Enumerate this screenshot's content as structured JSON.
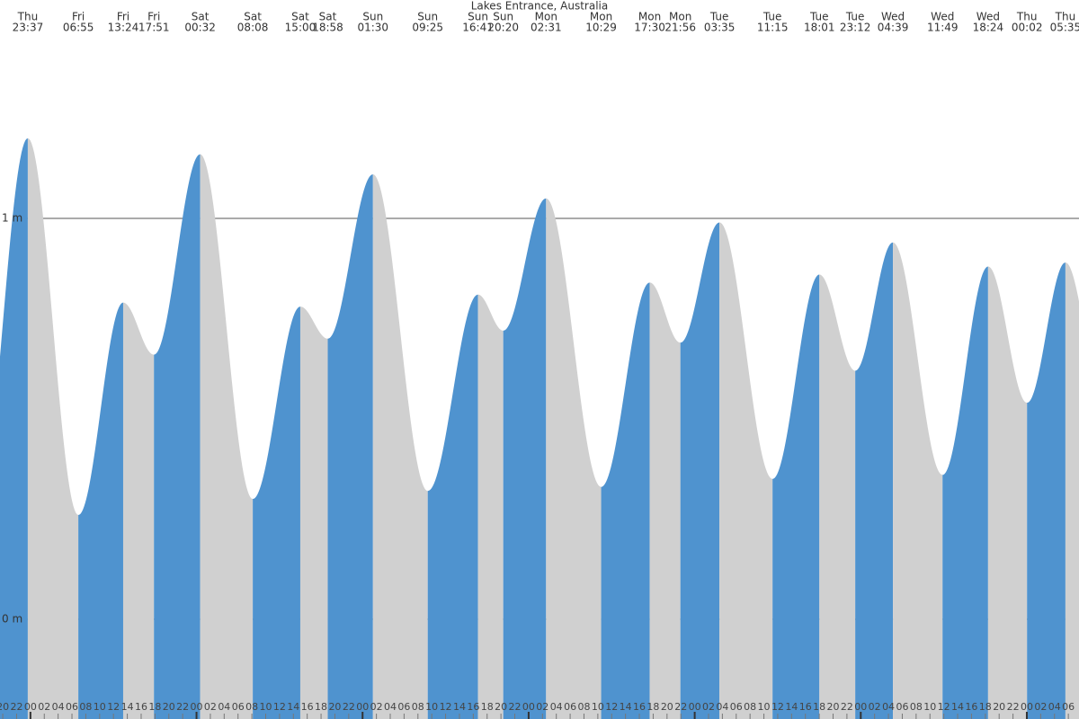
{
  "chart_data": {
    "type": "tide",
    "title": "Lakes Entrance, Australia",
    "x": [
      23.62,
      30.92,
      37.4,
      41.85,
      48.53,
      56.13,
      63.0,
      66.97,
      73.5,
      81.42,
      88.68,
      92.33,
      98.52,
      106.48,
      113.5,
      117.93,
      123.58,
      131.25,
      138.02,
      143.2,
      148.65,
      155.82,
      162.4,
      168.03,
      173.58
    ],
    "values": [
      1.2,
      0.26,
      0.79,
      0.66,
      1.16,
      0.3,
      0.78,
      0.7,
      1.11,
      0.32,
      0.81,
      0.72,
      1.05,
      0.33,
      0.84,
      0.69,
      0.99,
      0.35,
      0.86,
      0.62,
      0.94,
      0.36,
      0.88,
      0.54,
      0.89
    ],
    "day": [
      "Thu",
      "Fri",
      "Fri",
      "Fri",
      "Sat",
      "Sat",
      "Sat",
      "Sat",
      "Sun",
      "Sun",
      "Sun",
      "Sun",
      "Mon",
      "Mon",
      "Mon",
      "Mon",
      "Tue",
      "Tue",
      "Tue",
      "Tue",
      "Wed",
      "Wed",
      "Wed",
      "Thu",
      "Thu"
    ],
    "time": [
      "23:37",
      "06:55",
      "13:24",
      "17:51",
      "00:32",
      "08:08",
      "15:00",
      "18:58",
      "01:30",
      "09:25",
      "16:41",
      "20:20",
      "02:31",
      "10:29",
      "17:30",
      "21:56",
      "03:35",
      "11:15",
      "18:01",
      "23:12",
      "04:39",
      "11:49",
      "18:24",
      "00:02",
      "05:35"
    ],
    "rise_color": "#4f93cf",
    "fall_color": "#d0d0d0",
    "xlim": [
      19.6,
      175.54
    ],
    "ylim": [
      -0.249,
      1.545
    ],
    "yticks": [
      {
        "value": 0,
        "label": "0 m"
      },
      {
        "value": 1,
        "label": "1 m"
      }
    ],
    "grid": true,
    "xticks": [
      20,
      22,
      {
        "value": 24,
        "label": "00"
      },
      {
        "value": 26,
        "label": "02"
      },
      {
        "value": 28,
        "label": "04"
      },
      {
        "value": 30,
        "label": "06"
      },
      {
        "value": 32,
        "label": "08"
      },
      {
        "value": 34,
        "label": "10"
      },
      {
        "value": 36,
        "label": "12"
      },
      {
        "value": 38,
        "label": "14"
      },
      {
        "value": 40,
        "label": "16"
      },
      {
        "value": 42,
        "label": "18"
      },
      {
        "value": 44,
        "label": "20"
      },
      {
        "value": 46,
        "label": "22"
      },
      {
        "value": 48,
        "label": "00"
      },
      {
        "value": 50,
        "label": "02"
      },
      {
        "value": 52,
        "label": "04"
      },
      {
        "value": 54,
        "label": "06"
      },
      {
        "value": 56,
        "label": "08"
      },
      {
        "value": 58,
        "label": "10"
      },
      {
        "value": 60,
        "label": "12"
      },
      {
        "value": 62,
        "label": "14"
      },
      {
        "value": 64,
        "label": "16"
      },
      {
        "value": 66,
        "label": "18"
      },
      {
        "value": 68,
        "label": "20"
      },
      {
        "value": 70,
        "label": "22"
      },
      {
        "value": 72,
        "label": "00"
      },
      {
        "value": 74,
        "label": "02"
      },
      {
        "value": 76,
        "label": "04"
      },
      {
        "value": 78,
        "label": "06"
      },
      {
        "value": 80,
        "label": "08"
      },
      {
        "value": 82,
        "label": "10"
      },
      {
        "value": 84,
        "label": "12"
      },
      {
        "value": 86,
        "label": "14"
      },
      {
        "value": 88,
        "label": "16"
      },
      {
        "value": 90,
        "label": "18"
      },
      {
        "value": 92,
        "label": "20"
      },
      {
        "value": 94,
        "label": "22"
      },
      {
        "value": 96,
        "label": "00"
      },
      {
        "value": 98,
        "label": "02"
      },
      {
        "value": 100,
        "label": "04"
      },
      {
        "value": 102,
        "label": "06"
      },
      {
        "value": 104,
        "label": "08"
      },
      {
        "value": 106,
        "label": "10"
      },
      {
        "value": 108,
        "label": "12"
      },
      {
        "value": 110,
        "label": "14"
      },
      {
        "value": 112,
        "label": "16"
      },
      {
        "value": 114,
        "label": "18"
      },
      {
        "value": 116,
        "label": "20"
      },
      {
        "value": 118,
        "label": "22"
      },
      {
        "value": 120,
        "label": "00"
      },
      {
        "value": 122,
        "label": "02"
      },
      {
        "value": 124,
        "label": "04"
      },
      {
        "value": 126,
        "label": "06"
      },
      {
        "value": 128,
        "label": "08"
      },
      {
        "value": 130,
        "label": "10"
      },
      {
        "value": 132,
        "label": "12"
      },
      {
        "value": 134,
        "label": "14"
      },
      {
        "value": 136,
        "label": "16"
      },
      {
        "value": 138,
        "label": "18"
      },
      {
        "value": 140,
        "label": "20"
      },
      {
        "value": 142,
        "label": "22"
      },
      {
        "value": 144,
        "label": "00"
      },
      {
        "value": 146,
        "label": "02"
      },
      {
        "value": 148,
        "label": "04"
      },
      {
        "value": 150,
        "label": "06"
      },
      {
        "value": 152,
        "label": "08"
      },
      {
        "value": 154,
        "label": "10"
      },
      {
        "value": 156,
        "label": "12"
      },
      {
        "value": 158,
        "label": "14"
      },
      {
        "value": 160,
        "label": "16"
      },
      {
        "value": 162,
        "label": "18"
      },
      {
        "value": 164,
        "label": "20"
      },
      {
        "value": 166,
        "label": "22"
      },
      {
        "value": 168,
        "label": "00"
      },
      {
        "value": 170,
        "label": "02"
      },
      {
        "value": 172,
        "label": "04"
      },
      {
        "value": 174,
        "label": "06"
      }
    ]
  }
}
